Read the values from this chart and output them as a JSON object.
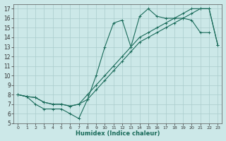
{
  "xlabel": "Humidex (Indice chaleur)",
  "xlim": [
    -0.5,
    23.5
  ],
  "ylim": [
    5,
    17.5
  ],
  "xticks": [
    0,
    1,
    2,
    3,
    4,
    5,
    6,
    7,
    8,
    9,
    10,
    11,
    12,
    13,
    14,
    15,
    16,
    17,
    18,
    19,
    20,
    21,
    22,
    23
  ],
  "yticks": [
    5,
    6,
    7,
    8,
    9,
    10,
    11,
    12,
    13,
    14,
    15,
    16,
    17
  ],
  "bg_color": "#cce8e8",
  "grid_color": "#b0d0d0",
  "line_color": "#1a6b5a",
  "line1_x": [
    0,
    1,
    2,
    3,
    4,
    5,
    6,
    7,
    8,
    9,
    10,
    11,
    12,
    13,
    14,
    15,
    16,
    17,
    18,
    19,
    20,
    21,
    22
  ],
  "line1_y": [
    8.0,
    7.8,
    7.0,
    6.5,
    6.5,
    6.5,
    6.0,
    5.5,
    7.5,
    10.0,
    13.0,
    15.5,
    15.8,
    13.0,
    16.2,
    17.0,
    16.2,
    16.0,
    16.0,
    16.0,
    15.8,
    14.5,
    14.5
  ],
  "line2_x": [
    0,
    1,
    2,
    3,
    4,
    5,
    6,
    7,
    8,
    9,
    10,
    11,
    12,
    13,
    14,
    15,
    16,
    17,
    18,
    19,
    20,
    21,
    22,
    23
  ],
  "line2_y": [
    8.0,
    7.8,
    7.7,
    7.2,
    7.0,
    7.0,
    6.8,
    7.0,
    8.0,
    9.0,
    10.0,
    11.0,
    12.0,
    13.0,
    14.0,
    14.5,
    15.0,
    15.5,
    16.0,
    16.5,
    17.0,
    17.0,
    17.0,
    13.2
  ],
  "line3_x": [
    0,
    1,
    2,
    3,
    4,
    5,
    6,
    7,
    8,
    9,
    10,
    11,
    12,
    13,
    14,
    15,
    16,
    17,
    18,
    19,
    20,
    21,
    22,
    23
  ],
  "line3_y": [
    8.0,
    7.8,
    7.7,
    7.2,
    7.0,
    7.0,
    6.8,
    7.0,
    7.5,
    8.5,
    9.5,
    10.5,
    11.5,
    12.5,
    13.5,
    14.0,
    14.5,
    15.0,
    15.5,
    16.0,
    16.5,
    17.0,
    17.0,
    13.2
  ]
}
